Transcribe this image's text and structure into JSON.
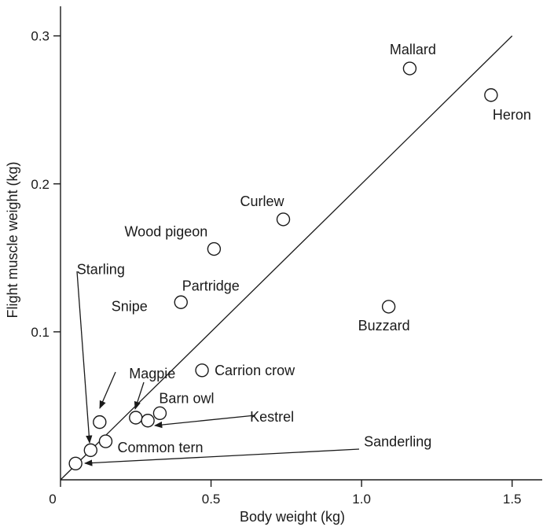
{
  "chart_data": {
    "type": "scatter",
    "title": "",
    "xlabel": "Body weight (kg)",
    "ylabel": "Flight muscle weight (kg)",
    "xlim": [
      0,
      1.6
    ],
    "ylim": [
      0,
      0.32
    ],
    "xticks": [
      {
        "value": 0,
        "label": "0"
      },
      {
        "value": 0.5,
        "label": "0.5"
      },
      {
        "value": 1.0,
        "label": "1.0"
      },
      {
        "value": 1.5,
        "label": "1.5"
      }
    ],
    "yticks": [
      {
        "value": 0.1,
        "label": "0.1"
      },
      {
        "value": 0.2,
        "label": "0.2"
      },
      {
        "value": 0.3,
        "label": "0.3"
      }
    ],
    "reference_line": {
      "x1": 0,
      "y1": 0,
      "x2": 1.5,
      "y2": 0.3
    },
    "points": [
      {
        "name": "Mallard",
        "x": 1.16,
        "y": 0.278
      },
      {
        "name": "Heron",
        "x": 1.43,
        "y": 0.26
      },
      {
        "name": "Curlew",
        "x": 0.74,
        "y": 0.176
      },
      {
        "name": "Wood pigeon",
        "x": 0.51,
        "y": 0.156
      },
      {
        "name": "Partridge",
        "x": 0.4,
        "y": 0.12
      },
      {
        "name": "Buzzard",
        "x": 1.09,
        "y": 0.117
      },
      {
        "name": "Carrion crow",
        "x": 0.47,
        "y": 0.074
      },
      {
        "name": "Magpie",
        "x": 0.25,
        "y": 0.042
      },
      {
        "name": "Barn owl",
        "x": 0.33,
        "y": 0.045
      },
      {
        "name": "Kestrel",
        "x": 0.29,
        "y": 0.04
      },
      {
        "name": "Snipe",
        "x": 0.13,
        "y": 0.039
      },
      {
        "name": "Common tern",
        "x": 0.15,
        "y": 0.026
      },
      {
        "name": "Starling",
        "x": 0.1,
        "y": 0.02
      },
      {
        "name": "Sanderling",
        "x": 0.05,
        "y": 0.011
      }
    ]
  }
}
